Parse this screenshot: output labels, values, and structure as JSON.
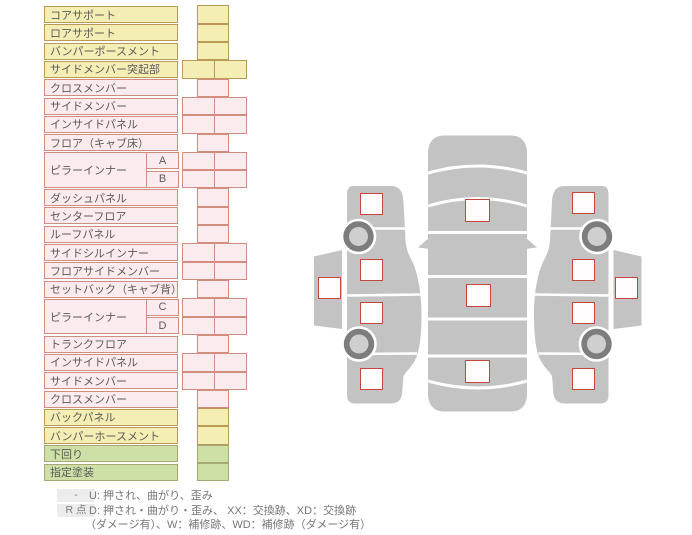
{
  "table": {
    "rows": [
      {
        "label": "コアサポート",
        "color": "yellow",
        "cells": "single"
      },
      {
        "label": "ロアサポート",
        "color": "yellow",
        "cells": "single"
      },
      {
        "label": "バンパーポースメント",
        "color": "yellow",
        "cells": "single"
      },
      {
        "label": "サイドメンバー突起部",
        "color": "yellow",
        "cells": "double"
      },
      {
        "label": "クロスメンバー",
        "color": "pink",
        "cells": "single"
      },
      {
        "label": "サイドメンバー",
        "color": "pink",
        "cells": "double"
      },
      {
        "label": "インサイドパネル",
        "color": "pink",
        "cells": "double"
      },
      {
        "label": "フロア（キャブ床）",
        "color": "pink",
        "cells": "single"
      },
      {
        "label": "ピラーインナー",
        "sub": "A",
        "group": "start",
        "color": "pink",
        "cells": "double"
      },
      {
        "label": "ピラーインナー",
        "sub": "B",
        "group": "end",
        "color": "pink",
        "cells": "double"
      },
      {
        "label": "ダッシュパネル",
        "color": "pink",
        "cells": "single"
      },
      {
        "label": "センターフロア",
        "color": "pink",
        "cells": "single"
      },
      {
        "label": "ルーフパネル",
        "color": "pink",
        "cells": "single"
      },
      {
        "label": "サイドシルインナー",
        "color": "pink",
        "cells": "double"
      },
      {
        "label": "フロアサイドメンバー",
        "color": "pink",
        "cells": "double"
      },
      {
        "label": "セットバック（キャブ背）",
        "color": "pink",
        "cells": "single"
      },
      {
        "label": "ピラーインナー",
        "sub": "C",
        "group": "start",
        "color": "pink",
        "cells": "double"
      },
      {
        "label": "ピラーインナー",
        "sub": "D",
        "group": "end",
        "color": "pink",
        "cells": "double"
      },
      {
        "label": "トランクフロア",
        "color": "pink",
        "cells": "single"
      },
      {
        "label": "インサイドパネル",
        "color": "pink",
        "cells": "double"
      },
      {
        "label": "サイドメンバー",
        "color": "pink",
        "cells": "double"
      },
      {
        "label": "クロスメンバー",
        "color": "pink",
        "cells": "single"
      },
      {
        "label": "バックパネル",
        "color": "yellow",
        "cells": "single"
      },
      {
        "label": "バンパーホースメント",
        "color": "yellow",
        "cells": "single"
      },
      {
        "label": "下回り",
        "color": "green",
        "cells": "single"
      },
      {
        "label": "指定塗装",
        "color": "green",
        "cells": "single"
      }
    ]
  },
  "legend": {
    "rows": [
      {
        "chip": "-",
        "text": "U: 押され、曲がり、歪み"
      },
      {
        "chip": "R 点",
        "text": "D: 押され・曲がり・歪み、 XX：交換跡、XD：交換跡"
      },
      {
        "chip": "",
        "text": "（ダメージ有）、W：補修跡、WD：補修跡（ダメージ有）"
      }
    ]
  },
  "colors": {
    "row_yellow": "#f5eeb4",
    "row_yellow_border": "#bb9a58",
    "row_pink": "#fcebee",
    "row_pink_border": "#d28d7e",
    "row_green": "#cfe0a6",
    "row_green_border": "#a6a972",
    "label_text": "#5a5a5a",
    "marker_border": "#c8453a",
    "car_body": "#c3c3c3",
    "wheel_ring": "#7d7d7d",
    "wheel_hub": "#cfcfcf",
    "legend_chip_bg": "#ececec",
    "legend_text": "#767676"
  }
}
